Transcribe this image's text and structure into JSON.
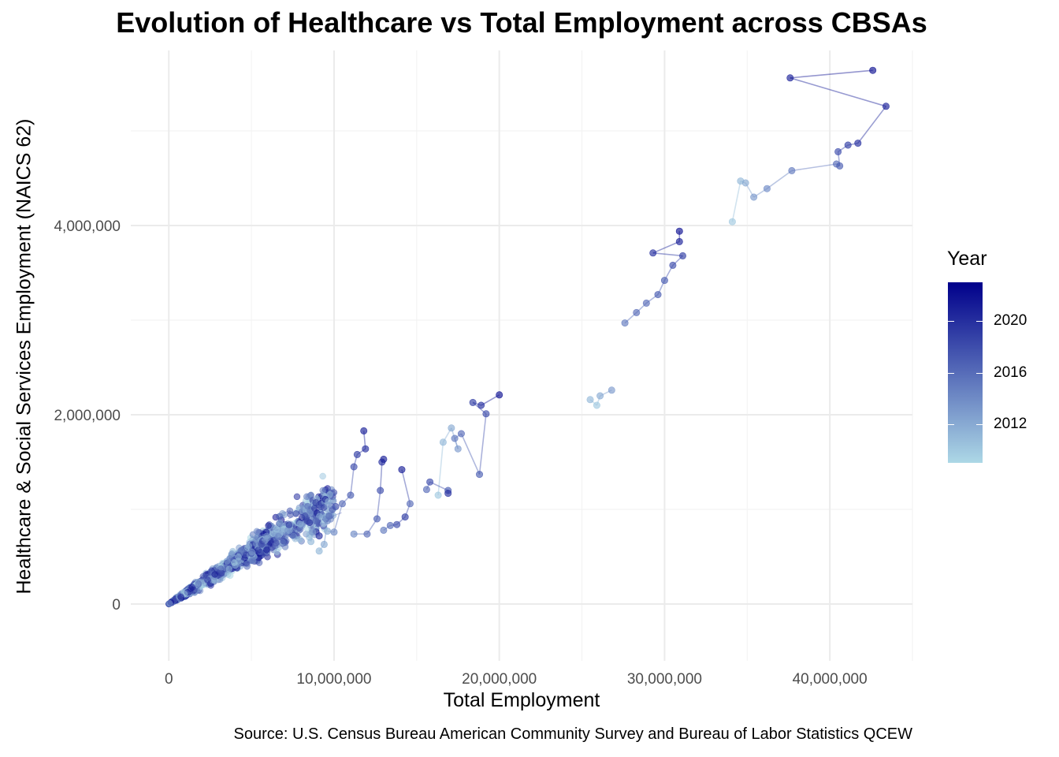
{
  "chart_data": {
    "type": "scatter",
    "title": "Evolution of Healthcare vs Total Employment across CBSAs",
    "xlabel": "Total Employment",
    "ylabel": "Healthcare & Social Services Employment (NAICS 62)",
    "caption": "Source: U.S. Census Bureau American Community Survey and Bureau of Labor Statistics QCEW",
    "xlim": [
      -2300000,
      45000000
    ],
    "ylim": [
      -600000,
      5850000
    ],
    "x_ticks": [
      0,
      10000000,
      20000000,
      30000000,
      40000000
    ],
    "x_tick_labels": [
      "0",
      "10,000,000",
      "20,000,000",
      "30,000,000",
      "40,000,000"
    ],
    "y_ticks": [
      0,
      2000000,
      4000000
    ],
    "y_tick_labels": [
      "0",
      "2,000,000",
      "4,000,000"
    ],
    "grid": true,
    "legend": {
      "title": "Year",
      "type": "colorbar",
      "position": "right",
      "range": [
        2009,
        2023
      ],
      "ticks": [
        2012,
        2016,
        2020
      ],
      "tick_labels": [
        "2012",
        "2016",
        "2020"
      ],
      "color_low": "#add8e6",
      "color_high": "#00008b"
    },
    "series": [
      {
        "points": [
          {
            "x": 34100000,
            "y": 4040000,
            "year": 2010
          },
          {
            "x": 34600000,
            "y": 4470000,
            "year": 2011
          },
          {
            "x": 34900000,
            "y": 4450000,
            "year": 2012
          },
          {
            "x": 35400000,
            "y": 4300000,
            "year": 2013
          },
          {
            "x": 36200000,
            "y": 4390000,
            "year": 2014
          },
          {
            "x": 37700000,
            "y": 4580000,
            "year": 2015
          },
          {
            "x": 40400000,
            "y": 4650000,
            "year": 2016
          },
          {
            "x": 40600000,
            "y": 4630000,
            "year": 2017
          },
          {
            "x": 40500000,
            "y": 4780000,
            "year": 2018
          },
          {
            "x": 41100000,
            "y": 4850000,
            "year": 2019
          },
          {
            "x": 41700000,
            "y": 4870000,
            "year": 2020
          },
          {
            "x": 43400000,
            "y": 5260000,
            "year": 2021
          },
          {
            "x": 37600000,
            "y": 5560000,
            "year": 2021
          },
          {
            "x": 42600000,
            "y": 5640000,
            "year": 2022
          }
        ]
      },
      {
        "points": [
          {
            "x": 27600000,
            "y": 2970000,
            "year": 2015
          },
          {
            "x": 28300000,
            "y": 3080000,
            "year": 2016
          },
          {
            "x": 28900000,
            "y": 3180000,
            "year": 2016
          },
          {
            "x": 29600000,
            "y": 3270000,
            "year": 2017
          },
          {
            "x": 30000000,
            "y": 3420000,
            "year": 2017
          },
          {
            "x": 30500000,
            "y": 3580000,
            "year": 2018
          },
          {
            "x": 31100000,
            "y": 3680000,
            "year": 2019
          },
          {
            "x": 29300000,
            "y": 3710000,
            "year": 2020
          },
          {
            "x": 30900000,
            "y": 3830000,
            "year": 2021
          },
          {
            "x": 30900000,
            "y": 3940000,
            "year": 2022
          }
        ]
      },
      {
        "points": [
          {
            "x": 25500000,
            "y": 2160000,
            "year": 2011
          },
          {
            "x": 25900000,
            "y": 2100000,
            "year": 2010
          },
          {
            "x": 26100000,
            "y": 2200000,
            "year": 2012
          },
          {
            "x": 26800000,
            "y": 2260000,
            "year": 2013
          }
        ]
      },
      {
        "points": [
          {
            "x": 16300000,
            "y": 1150000,
            "year": 2010
          },
          {
            "x": 16600000,
            "y": 1710000,
            "year": 2011
          },
          {
            "x": 17100000,
            "y": 1860000,
            "year": 2012
          },
          {
            "x": 17500000,
            "y": 1640000,
            "year": 2013
          },
          {
            "x": 17300000,
            "y": 1750000,
            "year": 2015
          },
          {
            "x": 17700000,
            "y": 1800000,
            "year": 2016
          },
          {
            "x": 18800000,
            "y": 1370000,
            "year": 2017
          },
          {
            "x": 19200000,
            "y": 2010000,
            "year": 2018
          },
          {
            "x": 18400000,
            "y": 2130000,
            "year": 2019
          },
          {
            "x": 18900000,
            "y": 2100000,
            "year": 2020
          },
          {
            "x": 20000000,
            "y": 2210000,
            "year": 2022
          }
        ]
      },
      {
        "points": [
          {
            "x": 15600000,
            "y": 1210000,
            "year": 2016
          },
          {
            "x": 15800000,
            "y": 1290000,
            "year": 2018
          },
          {
            "x": 16900000,
            "y": 1200000,
            "year": 2017
          },
          {
            "x": 16900000,
            "y": 1170000,
            "year": 2020
          }
        ]
      },
      {
        "points": [
          {
            "x": 9600000,
            "y": 770000,
            "year": 2012
          },
          {
            "x": 10000000,
            "y": 760000,
            "year": 2014
          },
          {
            "x": 10500000,
            "y": 1060000,
            "year": 2016
          },
          {
            "x": 11000000,
            "y": 1150000,
            "year": 2017
          },
          {
            "x": 11200000,
            "y": 1450000,
            "year": 2018
          },
          {
            "x": 11400000,
            "y": 1580000,
            "year": 2019
          },
          {
            "x": 11900000,
            "y": 1640000,
            "year": 2020
          },
          {
            "x": 11800000,
            "y": 1830000,
            "year": 2021
          }
        ]
      },
      {
        "points": [
          {
            "x": 11200000,
            "y": 740000,
            "year": 2014
          },
          {
            "x": 12000000,
            "y": 740000,
            "year": 2016
          },
          {
            "x": 12600000,
            "y": 900000,
            "year": 2017
          },
          {
            "x": 12800000,
            "y": 1200000,
            "year": 2018
          },
          {
            "x": 12900000,
            "y": 1500000,
            "year": 2020
          },
          {
            "x": 13000000,
            "y": 1530000,
            "year": 2021
          }
        ]
      },
      {
        "points": [
          {
            "x": 13000000,
            "y": 780000,
            "year": 2015
          },
          {
            "x": 13400000,
            "y": 830000,
            "year": 2016
          },
          {
            "x": 13800000,
            "y": 840000,
            "year": 2018
          },
          {
            "x": 14300000,
            "y": 920000,
            "year": 2019
          },
          {
            "x": 14600000,
            "y": 1060000,
            "year": 2016
          },
          {
            "x": 14100000,
            "y": 1420000,
            "year": 2021
          }
        ]
      },
      {
        "points": [
          {
            "x": 8600000,
            "y": 660000,
            "year": 2011
          },
          {
            "x": 8700000,
            "y": 760000,
            "year": 2013
          },
          {
            "x": 8900000,
            "y": 880000,
            "year": 2016
          },
          {
            "x": 8900000,
            "y": 1070000,
            "year": 2019
          },
          {
            "x": 9100000,
            "y": 720000,
            "year": 2020
          }
        ]
      },
      {
        "points": [
          {
            "x": 9100000,
            "y": 560000,
            "year": 2011
          },
          {
            "x": 9400000,
            "y": 630000,
            "year": 2012
          },
          {
            "x": 9600000,
            "y": 880000,
            "year": 2014
          },
          {
            "x": 9700000,
            "y": 930000,
            "year": 2016
          },
          {
            "x": 10100000,
            "y": 1030000,
            "year": 2018
          }
        ]
      }
    ]
  }
}
